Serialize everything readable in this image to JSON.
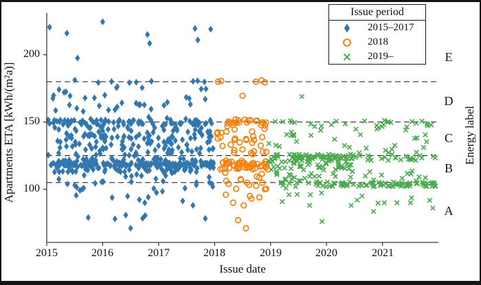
{
  "chart_data": {
    "type": "scatter",
    "xlabel": "Issue date",
    "ylabel": "Apartments ETA [kWh/(m²a)]",
    "right_axis_label": "Energy label",
    "xlim": [
      2015,
      2022
    ],
    "ylim": [
      60.5,
      231
    ],
    "xticks": [
      2015,
      2016,
      2017,
      2018,
      2019,
      2020,
      2021
    ],
    "yticks": [
      100,
      150,
      200
    ],
    "grid": false,
    "threshold_lines": [
      105,
      125,
      150,
      180
    ],
    "energy_labels": [
      {
        "label": "E",
        "y": 198
      },
      {
        "label": "D",
        "y": 165
      },
      {
        "label": "C",
        "y": 137
      },
      {
        "label": "B",
        "y": 115
      },
      {
        "label": "A",
        "y": 83
      }
    ],
    "seed": 42,
    "series": [
      {
        "name": "2015–2017",
        "marker": "diamond",
        "color": "#3377B0",
        "x_range": [
          2015.0,
          2018.0
        ],
        "clusters": [
          {
            "n": 110,
            "x": [
              2015.02,
              2017.99
            ],
            "y": [
              117.3,
              119.8
            ]
          },
          {
            "n": 120,
            "x": [
              2015.02,
              2017.99
            ],
            "y": [
              112.5,
              123.0
            ]
          },
          {
            "n": 150,
            "x": [
              2015.02,
              2017.99
            ],
            "y": [
              126.5,
              149.5
            ]
          },
          {
            "n": 60,
            "x": [
              2015.02,
              2017.99
            ],
            "y": [
              148.2,
              151.6
            ]
          },
          {
            "n": 38,
            "x": [
              2015.05,
              2017.95
            ],
            "y": [
              152.0,
              178.0
            ]
          },
          {
            "n": 9,
            "x": [
              2015.1,
              2017.9
            ],
            "y": [
              178.8,
              181.2
            ]
          },
          {
            "n": 28,
            "x": [
              2015.03,
              2017.97
            ],
            "y": [
              99.0,
              112.5
            ]
          },
          {
            "n": 14,
            "x": [
              2015.2,
              2017.95
            ],
            "y": [
              76.0,
              98.5
            ]
          },
          {
            "n": 12,
            "x": [
              2015.02,
              2017.99
            ],
            "y": [
              122.0,
              127.0
            ]
          }
        ],
        "points": [
          [
            2015.05,
            220.5
          ],
          [
            2015.36,
            216
          ],
          [
            2015.55,
            197.5
          ],
          [
            2016.0,
            224.5
          ],
          [
            2016.8,
            215
          ],
          [
            2016.84,
            208.5
          ],
          [
            2017.65,
            219.5
          ],
          [
            2017.7,
            211
          ],
          [
            2017.93,
            219
          ],
          [
            2016.5,
            71
          ],
          [
            2016.22,
            78
          ],
          [
            2016.76,
            80.5
          ]
        ]
      },
      {
        "name": "2018",
        "marker": "circle-open",
        "color": "#F5820D",
        "x_range": [
          2018.0,
          2019.0
        ],
        "clusters": [
          {
            "n": 20,
            "x": [
              2018.04,
              2018.96
            ],
            "y": [
              147.3,
              152.3
            ]
          },
          {
            "n": 30,
            "x": [
              2018.04,
              2018.96
            ],
            "y": [
              126.0,
              147.0
            ]
          },
          {
            "n": 46,
            "x": [
              2018.03,
              2018.97
            ],
            "y": [
              114.5,
              121.5
            ]
          },
          {
            "n": 12,
            "x": [
              2018.06,
              2018.94
            ],
            "y": [
              100.0,
              113.0
            ]
          }
        ],
        "points": [
          [
            2018.06,
            180
          ],
          [
            2018.12,
            180.5
          ],
          [
            2018.74,
            180
          ],
          [
            2018.84,
            181
          ],
          [
            2018.9,
            179.5
          ],
          [
            2018.5,
            169.5
          ],
          [
            2018.2,
            96
          ],
          [
            2018.33,
            90
          ],
          [
            2018.42,
            77
          ],
          [
            2018.52,
            88
          ],
          [
            2018.63,
            95
          ],
          [
            2018.66,
            93
          ],
          [
            2018.8,
            94
          ],
          [
            2018.56,
            71
          ],
          [
            2018.9,
            100
          ],
          [
            2018.25,
            104
          ],
          [
            2018.47,
            107
          ]
        ]
      },
      {
        "name": "2019–",
        "marker": "x",
        "color": "#4BAB4F",
        "x_range": [
          2019.0,
          2022.0
        ],
        "clusters": [
          {
            "n": 60,
            "x": [
              2019.0,
              2020.45
            ],
            "y": [
              122.3,
              126.2
            ]
          },
          {
            "n": 50,
            "x": [
              2019.0,
              2020.45
            ],
            "y": [
              114.5,
              123.0
            ]
          },
          {
            "n": 26,
            "x": [
              2020.45,
              2021.95
            ],
            "y": [
              121.5,
              126.3
            ]
          },
          {
            "n": 28,
            "x": [
              2019.15,
              2020.3
            ],
            "y": [
              101.8,
              105.8
            ]
          },
          {
            "n": 62,
            "x": [
              2020.3,
              2021.97
            ],
            "y": [
              101.8,
              105.5
            ]
          },
          {
            "n": 34,
            "x": [
              2019.02,
              2021.9
            ],
            "y": [
              106.0,
              114.5
            ]
          },
          {
            "n": 26,
            "x": [
              2019.02,
              2021.92
            ],
            "y": [
              146.3,
              151.3
            ]
          },
          {
            "n": 30,
            "x": [
              2019.02,
              2021.9
            ],
            "y": [
              127.0,
              146.0
            ]
          },
          {
            "n": 11,
            "x": [
              2019.1,
              2021.9
            ],
            "y": [
              88.0,
              101.0
            ]
          }
        ],
        "points": [
          [
            2019.56,
            169
          ],
          [
            2019.92,
            76
          ],
          [
            2020.84,
            83.5
          ],
          [
            2021.9,
            86
          ],
          [
            2021.5,
            90
          ],
          [
            2019.33,
            96
          ],
          [
            2021.26,
            90
          ],
          [
            2020.55,
            92
          ],
          [
            2019.7,
            88
          ],
          [
            2018.97,
            134
          ],
          [
            2018.96,
            121
          ]
        ]
      }
    ],
    "legend": {
      "title": "Issue period",
      "position": "upper right",
      "entries": [
        {
          "label": "2015–2017",
          "marker": "diamond",
          "color": "#3377B0"
        },
        {
          "label": "2018",
          "marker": "circle-open",
          "color": "#F5820D"
        },
        {
          "label": "2019–",
          "marker": "x",
          "color": "#4BAB4F"
        }
      ]
    }
  }
}
